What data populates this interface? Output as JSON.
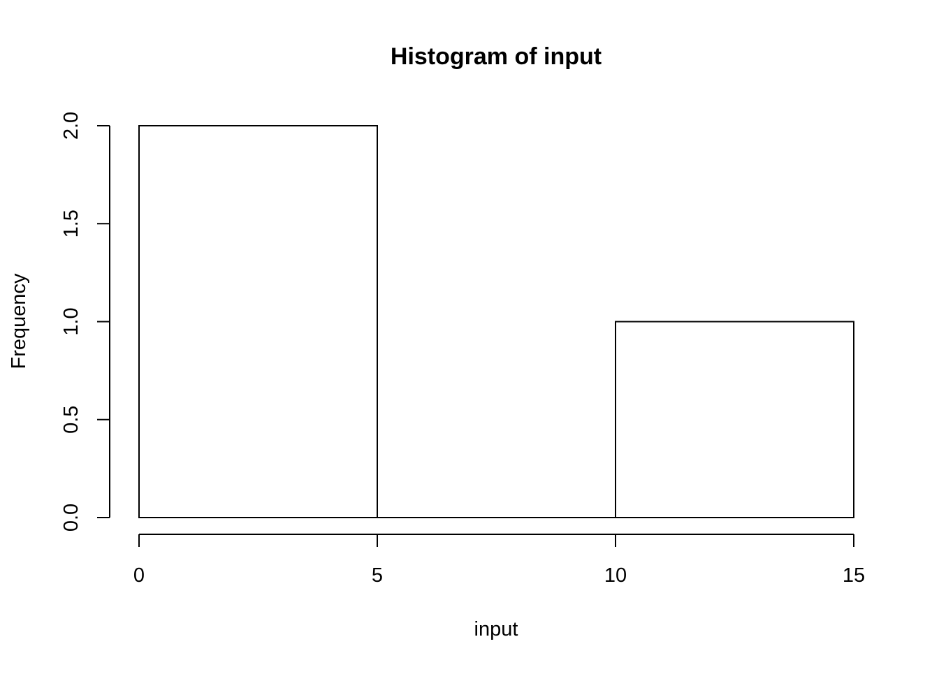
{
  "chart_data": {
    "type": "bar",
    "title": "Histogram of input",
    "xlabel": "input",
    "ylabel": "Frequency",
    "bins": [
      {
        "start": 0,
        "end": 5,
        "count": 2
      },
      {
        "start": 5,
        "end": 10,
        "count": 0
      },
      {
        "start": 10,
        "end": 15,
        "count": 1
      }
    ],
    "xlim": [
      0,
      15
    ],
    "ylim": [
      0,
      2
    ],
    "x_ticks": [
      0,
      5,
      10,
      15
    ],
    "x_tick_labels": [
      "0",
      "5",
      "10",
      "15"
    ],
    "y_ticks": [
      0,
      0.5,
      1,
      1.5,
      2
    ],
    "y_tick_labels": [
      "0.0",
      "0.5",
      "1.0",
      "1.5",
      "2.0"
    ],
    "grid": false,
    "bar_fill": "#ffffff",
    "bar_stroke": "#000000"
  }
}
